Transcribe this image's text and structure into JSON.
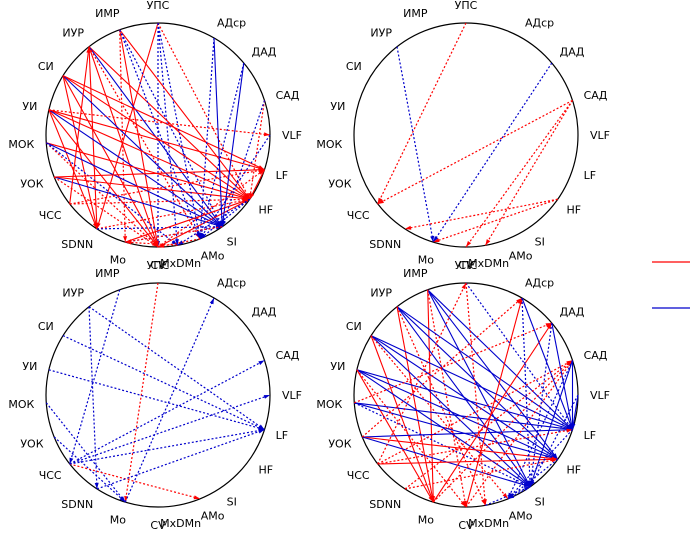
{
  "nodes": [
    "УПС",
    "АДср",
    "ДАД",
    "САД",
    "VLF",
    "LF",
    "HF",
    "SI",
    "AMo",
    "MxDMn",
    "CV",
    "Mo",
    "SDNN",
    "ЧСС",
    "УОК",
    "МОК",
    "УИ",
    "СИ",
    "ИУР",
    "ИМР"
  ],
  "colors": {
    "positive": "#ff0000",
    "negative": "#0000cc"
  },
  "legend": [
    {
      "name": "legend-red-line",
      "color": "#ff0000"
    },
    {
      "name": "legend-blue-line",
      "color": "#0000cc"
    }
  ],
  "diagrams": [
    {
      "edges": [
        [
          "УПС",
          "HF",
          "r",
          "d"
        ],
        [
          "УПС",
          "SDNN",
          "r",
          "s"
        ],
        [
          "УПС",
          "CV",
          "b",
          "d"
        ],
        [
          "УПС",
          "MxDMn",
          "b",
          "d"
        ],
        [
          "ИМР",
          "HF",
          "r",
          "s"
        ],
        [
          "ИМР",
          "CV",
          "r",
          "s"
        ],
        [
          "ИМР",
          "SI",
          "b",
          "d"
        ],
        [
          "ИМР",
          "Mo",
          "r",
          "d"
        ],
        [
          "ИУР",
          "HF",
          "r",
          "s"
        ],
        [
          "ИУР",
          "CV",
          "r",
          "s"
        ],
        [
          "ИУР",
          "SI",
          "b",
          "s"
        ],
        [
          "ИУР",
          "SDNN",
          "r",
          "s"
        ],
        [
          "ИУР",
          "AMo",
          "r",
          "d"
        ],
        [
          "СИ",
          "HF",
          "r",
          "s"
        ],
        [
          "СИ",
          "CV",
          "r",
          "s"
        ],
        [
          "СИ",
          "SI",
          "b",
          "s"
        ],
        [
          "СИ",
          "LF",
          "r",
          "s"
        ],
        [
          "СИ",
          "SDNN",
          "r",
          "s"
        ],
        [
          "УИ",
          "HF",
          "r",
          "s"
        ],
        [
          "УИ",
          "CV",
          "r",
          "s"
        ],
        [
          "УИ",
          "SI",
          "b",
          "s"
        ],
        [
          "УИ",
          "LF",
          "r",
          "s"
        ],
        [
          "УИ",
          "SDNN",
          "r",
          "s"
        ],
        [
          "УИ",
          "VLF",
          "r",
          "d"
        ],
        [
          "МОК",
          "HF",
          "r",
          "s"
        ],
        [
          "МОК",
          "SI",
          "b",
          "s"
        ],
        [
          "МОК",
          "CV",
          "r",
          "d"
        ],
        [
          "МОК",
          "MxDMn",
          "b",
          "d"
        ],
        [
          "УОК",
          "HF",
          "r",
          "s"
        ],
        [
          "УОК",
          "SI",
          "b",
          "s"
        ],
        [
          "УОК",
          "LF",
          "r",
          "s"
        ],
        [
          "УОК",
          "CV",
          "r",
          "d"
        ],
        [
          "ЧСС",
          "HF",
          "r",
          "d"
        ],
        [
          "ЧСС",
          "LF",
          "r",
          "d"
        ],
        [
          "ЧСС",
          "ИУР",
          "r",
          "s"
        ],
        [
          "SDNN",
          "HF",
          "r",
          "d"
        ],
        [
          "SDNN",
          "SI",
          "b",
          "d"
        ],
        [
          "Mo",
          "HF",
          "r",
          "s"
        ],
        [
          "Mo",
          "SI",
          "b",
          "d"
        ],
        [
          "CV",
          "HF",
          "r",
          "s"
        ],
        [
          "CV",
          "LF",
          "r",
          "d"
        ],
        [
          "АДср",
          "SI",
          "b",
          "s"
        ],
        [
          "АДср",
          "AMo",
          "b",
          "d"
        ],
        [
          "ДАД",
          "SI",
          "b",
          "s"
        ],
        [
          "ДАД",
          "AMo",
          "b",
          "d"
        ],
        [
          "САД",
          "HF",
          "r",
          "d"
        ],
        [
          "САД",
          "SI",
          "b",
          "d"
        ],
        [
          "VLF",
          "AMo",
          "b",
          "d"
        ],
        [
          "LF",
          "HF",
          "r",
          "s"
        ],
        [
          "HF",
          "AMo",
          "b",
          "d"
        ],
        [
          "HF",
          "MxDMn",
          "b",
          "d"
        ],
        [
          "УПС",
          "AMo",
          "b",
          "d"
        ],
        [
          "ИМР",
          "AMo",
          "b",
          "d"
        ],
        [
          "SI",
          "Mo",
          "r",
          "d"
        ],
        [
          "AMo",
          "CV",
          "r",
          "d"
        ],
        [
          "MxDMn",
          "Mo",
          "r",
          "d"
        ]
      ]
    },
    {
      "edges": [
        [
          "ИУР",
          "Mo",
          "b",
          "d"
        ],
        [
          "УПС",
          "ЧСС",
          "r",
          "d"
        ],
        [
          "ДАД",
          "Mo",
          "b",
          "d"
        ],
        [
          "САД",
          "ЧСС",
          "r",
          "d"
        ],
        [
          "САД",
          "MxDMn",
          "r",
          "d"
        ],
        [
          "САД",
          "CV",
          "r",
          "d"
        ],
        [
          "HF",
          "SDNN",
          "r",
          "d"
        ],
        [
          "HF",
          "Mo",
          "r",
          "d"
        ]
      ]
    },
    {
      "edges": [
        [
          "УПС",
          "Mo",
          "r",
          "d"
        ],
        [
          "ИМР",
          "ЧСС",
          "b",
          "d"
        ],
        [
          "ИУР",
          "LF",
          "b",
          "d"
        ],
        [
          "ИУР",
          "SDNN",
          "b",
          "d"
        ],
        [
          "СИ",
          "LF",
          "b",
          "d"
        ],
        [
          "УИ",
          "LF",
          "b",
          "d"
        ],
        [
          "МОК",
          "Mo",
          "b",
          "d"
        ],
        [
          "УОК",
          "Mo",
          "b",
          "d"
        ],
        [
          "ЧСС",
          "САД",
          "b",
          "d"
        ],
        [
          "ЧСС",
          "VLF",
          "b",
          "d"
        ],
        [
          "ЧСС",
          "AMo",
          "r",
          "d"
        ],
        [
          "SDNN",
          "LF",
          "b",
          "d"
        ],
        [
          "Mo",
          "АДср",
          "b",
          "d"
        ],
        [
          "ЧСС",
          "LF",
          "b",
          "d"
        ]
      ]
    },
    {
      "edges": [
        [
          "ИМР",
          "LF",
          "b",
          "s"
        ],
        [
          "ИМР",
          "HF",
          "b",
          "s"
        ],
        [
          "ИМР",
          "SI",
          "b",
          "s"
        ],
        [
          "ИМР",
          "Mo",
          "r",
          "s"
        ],
        [
          "ИМР",
          "CV",
          "r",
          "d"
        ],
        [
          "ИУР",
          "LF",
          "b",
          "s"
        ],
        [
          "ИУР",
          "HF",
          "b",
          "s"
        ],
        [
          "ИУР",
          "SI",
          "b",
          "s"
        ],
        [
          "ИУР",
          "Mo",
          "r",
          "s"
        ],
        [
          "ИУР",
          "MxDMn",
          "r",
          "d"
        ],
        [
          "СИ",
          "LF",
          "b",
          "s"
        ],
        [
          "СИ",
          "HF",
          "b",
          "s"
        ],
        [
          "СИ",
          "SI",
          "b",
          "s"
        ],
        [
          "СИ",
          "Mo",
          "r",
          "s"
        ],
        [
          "СИ",
          "AMo",
          "r",
          "d"
        ],
        [
          "УИ",
          "LF",
          "b",
          "s"
        ],
        [
          "УИ",
          "HF",
          "b",
          "s"
        ],
        [
          "УИ",
          "SI",
          "b",
          "s"
        ],
        [
          "УИ",
          "Mo",
          "r",
          "s"
        ],
        [
          "УИ",
          "CV",
          "r",
          "d"
        ],
        [
          "МОК",
          "LF",
          "b",
          "s"
        ],
        [
          "МОК",
          "HF",
          "b",
          "s"
        ],
        [
          "МОК",
          "SI",
          "b",
          "d"
        ],
        [
          "МОК",
          "ДАД",
          "r",
          "d"
        ],
        [
          "УОК",
          "LF",
          "b",
          "s"
        ],
        [
          "УОК",
          "HF",
          "r",
          "s"
        ],
        [
          "УОК",
          "SI",
          "b",
          "s"
        ],
        [
          "УОК",
          "АДср",
          "r",
          "d"
        ],
        [
          "ЧСС",
          "LF",
          "r",
          "d"
        ],
        [
          "ЧСС",
          "HF",
          "r",
          "s"
        ],
        [
          "ЧСС",
          "САД",
          "r",
          "d"
        ],
        [
          "ЧСС",
          "УПС",
          "r",
          "d"
        ],
        [
          "SDNN",
          "HF",
          "r",
          "d"
        ],
        [
          "SDNN",
          "САД",
          "r",
          "d"
        ],
        [
          "Mo",
          "САД",
          "r",
          "d"
        ],
        [
          "Mo",
          "ДАД",
          "r",
          "s"
        ],
        [
          "CV",
          "АДср",
          "r",
          "s"
        ],
        [
          "CV",
          "САД",
          "r",
          "d"
        ],
        [
          "УПС",
          "LF",
          "b",
          "d"
        ],
        [
          "УПС",
          "MxDMn",
          "r",
          "d"
        ],
        [
          "АДср",
          "LF",
          "b",
          "s"
        ],
        [
          "АДср",
          "SI",
          "b",
          "d"
        ],
        [
          "ДАД",
          "LF",
          "b",
          "s"
        ],
        [
          "ДАД",
          "SI",
          "b",
          "d"
        ],
        [
          "САД",
          "LF",
          "b",
          "s"
        ],
        [
          "САД",
          "SI",
          "b",
          "s"
        ],
        [
          "САД",
          "AMo",
          "b",
          "d"
        ],
        [
          "VLF",
          "LF",
          "b",
          "s"
        ],
        [
          "VLF",
          "SI",
          "b",
          "d"
        ],
        [
          "LF",
          "AMo",
          "b",
          "d"
        ],
        [
          "HF",
          "AMo",
          "b",
          "d"
        ],
        [
          "SI",
          "AMo",
          "b",
          "d"
        ],
        [
          "MxDMn",
          "SI",
          "b",
          "d"
        ]
      ]
    }
  ]
}
